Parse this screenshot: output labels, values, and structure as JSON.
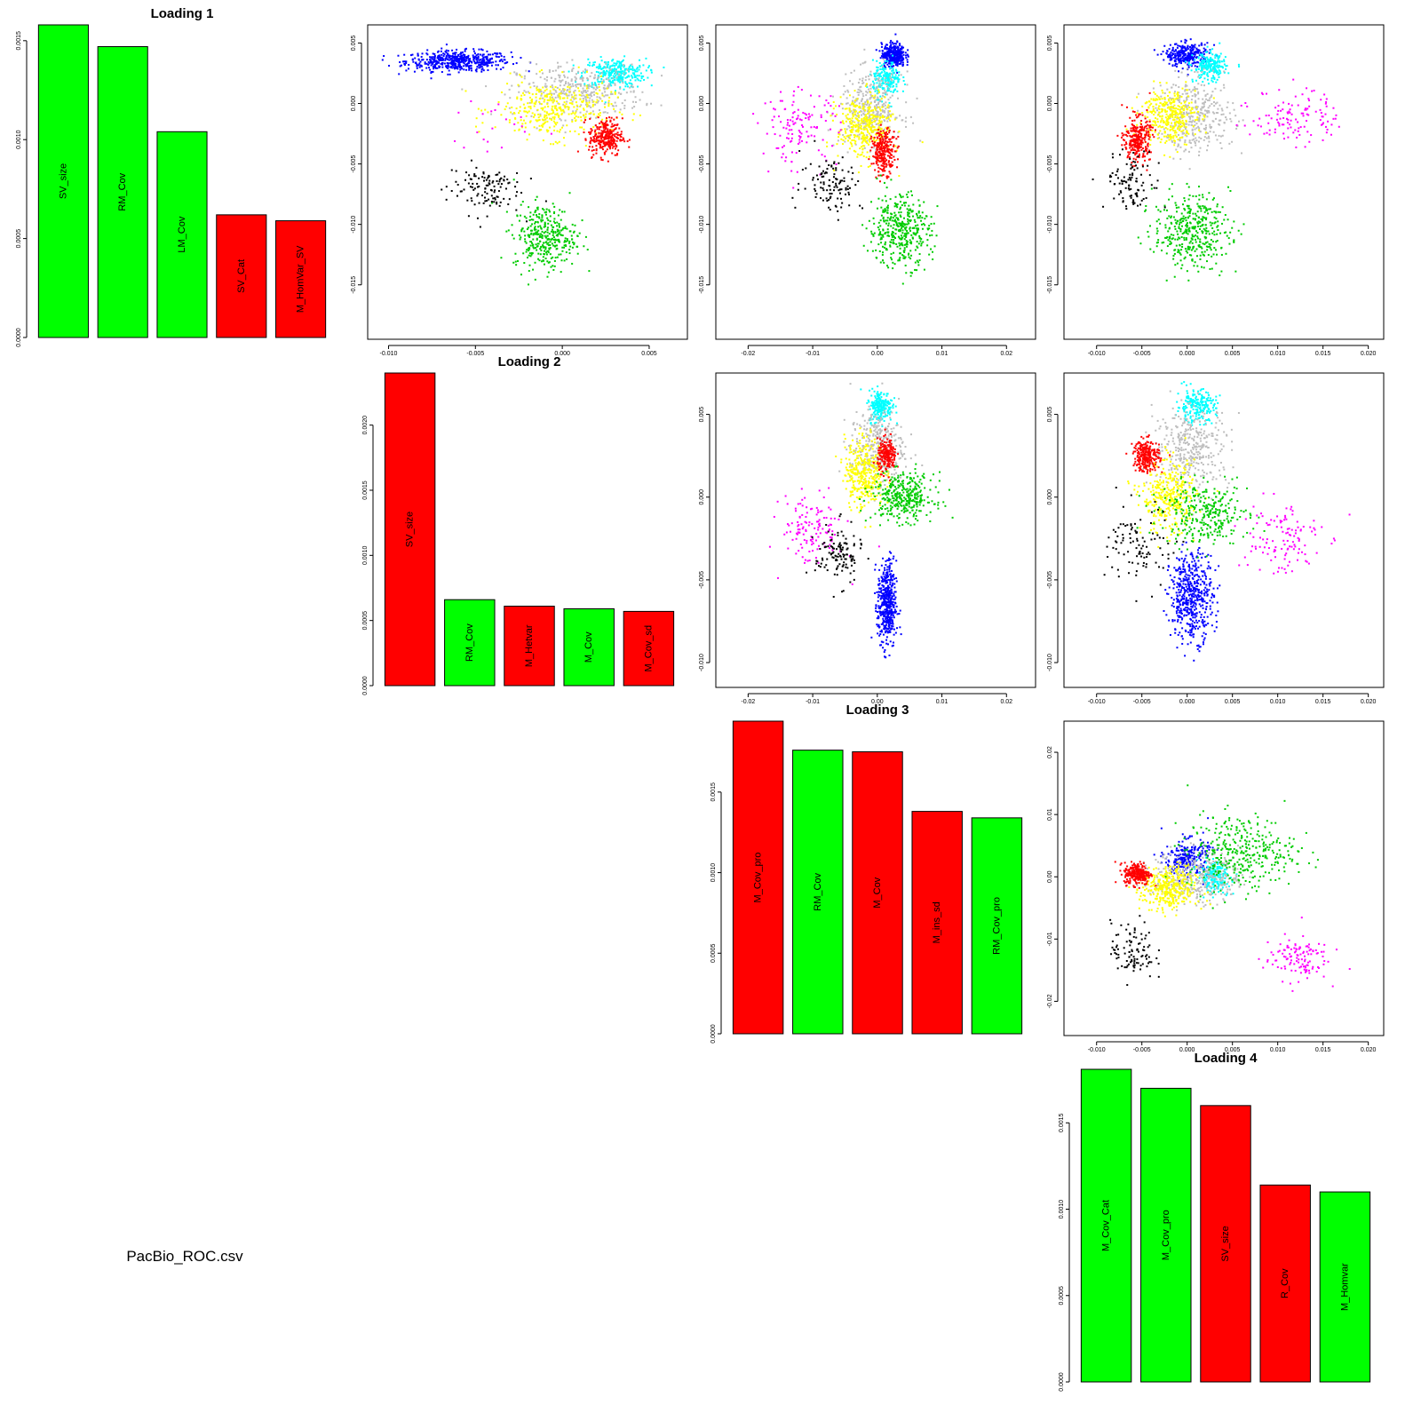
{
  "caption": "PacBio_ROC.csv",
  "colors": {
    "green": "#00ff00",
    "red": "#ff0000",
    "scatter_groups": [
      "#0000ff",
      "#00ffff",
      "#bebebe",
      "#ffff00",
      "#ff0000",
      "#00cc00",
      "#ff00ff",
      "#000000"
    ]
  },
  "chart_data": [
    {
      "id": "loading1",
      "type": "bar",
      "title": "Loading 1",
      "categories": [
        "SV_size",
        "RM_Cov",
        "LM_Cov",
        "SV_Cat",
        "M_HomVar_SV"
      ],
      "values": [
        0.00158,
        0.00147,
        0.00104,
        0.00062,
        0.00059
      ],
      "bar_colors": [
        "green",
        "green",
        "green",
        "red",
        "red"
      ],
      "ylim": [
        0,
        0.00158
      ],
      "yticks": [
        "0.0000",
        "0.0005",
        "0.0010",
        "0.0015"
      ],
      "ytick_values": [
        0,
        0.0005,
        0.001,
        0.0015
      ]
    },
    {
      "id": "loading2",
      "type": "bar",
      "title": "Loading 2",
      "categories": [
        "SV_size",
        "RM_Cov",
        "M_Hetvar",
        "M_Cov",
        "M_Cov_sd"
      ],
      "values": [
        0.0024,
        0.00066,
        0.00061,
        0.00059,
        0.00057
      ],
      "bar_colors": [
        "red",
        "green",
        "red",
        "green",
        "red"
      ],
      "ylim": [
        0,
        0.0024
      ],
      "yticks": [
        "0.0000",
        "0.0005",
        "0.0010",
        "0.0015",
        "0.0020"
      ],
      "ytick_values": [
        0,
        0.0005,
        0.001,
        0.0015,
        0.002
      ]
    },
    {
      "id": "loading3",
      "type": "bar",
      "title": "Loading 3",
      "categories": [
        "M_Cov_pro",
        "RM_Cov",
        "M_Cov",
        "M_ins_sd",
        "RM_Cov_pro"
      ],
      "values": [
        0.00194,
        0.00176,
        0.00175,
        0.00138,
        0.00134
      ],
      "bar_colors": [
        "red",
        "green",
        "red",
        "red",
        "green"
      ],
      "ylim": [
        0,
        0.00194
      ],
      "yticks": [
        "0.0000",
        "0.0005",
        "0.0010",
        "0.0015"
      ],
      "ytick_values": [
        0,
        0.0005,
        0.001,
        0.0015
      ]
    },
    {
      "id": "loading4",
      "type": "bar",
      "title": "Loading 4",
      "categories": [
        "M_Cov_Cat",
        "M_Cov_pro",
        "SV_size",
        "R_Cov",
        "M_Homvar"
      ],
      "values": [
        0.00181,
        0.0017,
        0.0016,
        0.00114,
        0.0011
      ],
      "bar_colors": [
        "green",
        "green",
        "red",
        "red",
        "green"
      ],
      "ylim": [
        0,
        0.00181
      ],
      "yticks": [
        "0.0000",
        "0.0005",
        "0.0010",
        "0.0015"
      ],
      "ytick_values": [
        0,
        0.0005,
        0.001,
        0.0015
      ]
    },
    {
      "id": "pc1_vs_pc2",
      "type": "scatter",
      "xlim": [
        -0.0112,
        0.0072
      ],
      "ylim": [
        -0.0195,
        0.0065
      ],
      "xticks": [
        "-0.010",
        "-0.005",
        "0.000",
        "0.005"
      ],
      "xtick_values": [
        -0.01,
        -0.005,
        0,
        0.005
      ],
      "yticks": [
        "-0.015",
        "-0.010",
        "-0.005",
        "0.000",
        "0.005"
      ],
      "ytick_values": [
        -0.015,
        -0.01,
        -0.005,
        0,
        0.005
      ],
      "groups": [
        {
          "color": "#0000ff",
          "center": [
            -0.006,
            0.0035
          ],
          "spread": [
            0.0025,
            0.0007
          ],
          "n": 500
        },
        {
          "color": "#00ffff",
          "center": [
            0.003,
            0.0025
          ],
          "spread": [
            0.0015,
            0.001
          ],
          "n": 300
        },
        {
          "color": "#bebebe",
          "center": [
            0.001,
            0.001
          ],
          "spread": [
            0.003,
            0.0018
          ],
          "n": 350
        },
        {
          "color": "#ffff00",
          "center": [
            -0.0005,
            -0.0005
          ],
          "spread": [
            0.0028,
            0.002
          ],
          "n": 350
        },
        {
          "color": "#ff0000",
          "center": [
            0.0025,
            -0.0028
          ],
          "spread": [
            0.0008,
            0.0013
          ],
          "n": 280
        },
        {
          "color": "#00cc00",
          "center": [
            -0.001,
            -0.011
          ],
          "spread": [
            0.0015,
            0.0022
          ],
          "n": 350
        },
        {
          "color": "#ff00ff",
          "center": [
            -0.004,
            -0.002
          ],
          "spread": [
            0.002,
            0.002
          ],
          "n": 20
        },
        {
          "color": "#000000",
          "center": [
            -0.0045,
            -0.007
          ],
          "spread": [
            0.0018,
            0.0018
          ],
          "n": 120
        }
      ]
    },
    {
      "id": "pc1_vs_pc3",
      "type": "scatter",
      "xlim": [
        -0.025,
        0.0245
      ],
      "ylim": [
        -0.0195,
        0.0065
      ],
      "xticks": [
        "-0.02",
        "-0.01",
        "0.00",
        "0.01",
        "0.02"
      ],
      "xtick_values": [
        -0.02,
        -0.01,
        0,
        0.01,
        0.02
      ],
      "yticks": [
        "-0.015",
        "-0.010",
        "-0.005",
        "0.000",
        "0.005"
      ],
      "ytick_values": [
        -0.015,
        -0.01,
        -0.005,
        0,
        0.005
      ],
      "groups": [
        {
          "color": "#0000ff",
          "center": [
            0.0025,
            0.004
          ],
          "spread": [
            0.0015,
            0.0008
          ],
          "n": 350
        },
        {
          "color": "#00ffff",
          "center": [
            0.0015,
            0.002
          ],
          "spread": [
            0.0018,
            0.0012
          ],
          "n": 200
        },
        {
          "color": "#bebebe",
          "center": [
            -0.001,
            -0.0005
          ],
          "spread": [
            0.004,
            0.0025
          ],
          "n": 350
        },
        {
          "color": "#ffff00",
          "center": [
            -0.002,
            -0.002
          ],
          "spread": [
            0.0035,
            0.0022
          ],
          "n": 350
        },
        {
          "color": "#ff0000",
          "center": [
            0.001,
            -0.004
          ],
          "spread": [
            0.0015,
            0.0015
          ],
          "n": 250
        },
        {
          "color": "#00cc00",
          "center": [
            0.0035,
            -0.0105
          ],
          "spread": [
            0.004,
            0.0025
          ],
          "n": 400
        },
        {
          "color": "#ff00ff",
          "center": [
            -0.012,
            -0.002
          ],
          "spread": [
            0.005,
            0.0025
          ],
          "n": 130
        },
        {
          "color": "#000000",
          "center": [
            -0.007,
            -0.0065
          ],
          "spread": [
            0.004,
            0.002
          ],
          "n": 110
        }
      ]
    },
    {
      "id": "pc1_vs_pc4",
      "type": "scatter",
      "xlim": [
        -0.0136,
        0.0217
      ],
      "ylim": [
        -0.0195,
        0.0065
      ],
      "xticks": [
        "-0.010",
        "-0.005",
        "0.000",
        "0.005",
        "0.010",
        "0.015",
        "0.020"
      ],
      "xtick_values": [
        -0.01,
        -0.005,
        0,
        0.005,
        0.01,
        0.015,
        0.02
      ],
      "yticks": [
        "-0.015",
        "-0.010",
        "-0.005",
        "0.000",
        "0.005"
      ],
      "ytick_values": [
        -0.015,
        -0.01,
        -0.005,
        0,
        0.005
      ],
      "groups": [
        {
          "color": "#0000ff",
          "center": [
            0.0,
            0.004
          ],
          "spread": [
            0.002,
            0.0008
          ],
          "n": 300
        },
        {
          "color": "#00ffff",
          "center": [
            0.0025,
            0.003
          ],
          "spread": [
            0.0015,
            0.001
          ],
          "n": 220
        },
        {
          "color": "#bebebe",
          "center": [
            0.001,
            -0.001
          ],
          "spread": [
            0.0035,
            0.0025
          ],
          "n": 350
        },
        {
          "color": "#ffff00",
          "center": [
            -0.002,
            -0.001
          ],
          "spread": [
            0.0025,
            0.002
          ],
          "n": 350
        },
        {
          "color": "#ff0000",
          "center": [
            -0.0055,
            -0.003
          ],
          "spread": [
            0.0012,
            0.0015
          ],
          "n": 280
        },
        {
          "color": "#00cc00",
          "center": [
            0.0005,
            -0.0105
          ],
          "spread": [
            0.0035,
            0.0025
          ],
          "n": 400
        },
        {
          "color": "#ff00ff",
          "center": [
            0.012,
            -0.001
          ],
          "spread": [
            0.004,
            0.002
          ],
          "n": 120
        },
        {
          "color": "#000000",
          "center": [
            -0.006,
            -0.0065
          ],
          "spread": [
            0.0025,
            0.002
          ],
          "n": 100
        }
      ]
    },
    {
      "id": "pc2_vs_pc3",
      "type": "scatter",
      "xlim": [
        -0.025,
        0.0245
      ],
      "ylim": [
        -0.0115,
        0.0075
      ],
      "xticks": [
        "-0.02",
        "-0.01",
        "0.00",
        "0.01",
        "0.02"
      ],
      "xtick_values": [
        -0.02,
        -0.01,
        0,
        0.01,
        0.02
      ],
      "yticks": [
        "-0.010",
        "-0.005",
        "0.000",
        "0.005"
      ],
      "ytick_values": [
        -0.01,
        -0.005,
        0,
        0.005
      ],
      "groups": [
        {
          "color": "#0000ff",
          "center": [
            0.0015,
            -0.0065
          ],
          "spread": [
            0.0012,
            0.0022
          ],
          "n": 450
        },
        {
          "color": "#00ffff",
          "center": [
            0.0005,
            0.0055
          ],
          "spread": [
            0.0015,
            0.0008
          ],
          "n": 220
        },
        {
          "color": "#bebebe",
          "center": [
            0.0,
            0.003
          ],
          "spread": [
            0.0035,
            0.0018
          ],
          "n": 350
        },
        {
          "color": "#ffff00",
          "center": [
            -0.002,
            0.0015
          ],
          "spread": [
            0.0025,
            0.0018
          ],
          "n": 350
        },
        {
          "color": "#ff0000",
          "center": [
            0.0015,
            0.0025
          ],
          "spread": [
            0.0012,
            0.0008
          ],
          "n": 200
        },
        {
          "color": "#00cc00",
          "center": [
            0.004,
            0.0
          ],
          "spread": [
            0.004,
            0.0012
          ],
          "n": 350
        },
        {
          "color": "#ff00ff",
          "center": [
            -0.01,
            -0.002
          ],
          "spread": [
            0.004,
            0.0018
          ],
          "n": 130
        },
        {
          "color": "#000000",
          "center": [
            -0.006,
            -0.0035
          ],
          "spread": [
            0.003,
            0.0015
          ],
          "n": 120
        }
      ]
    },
    {
      "id": "pc2_vs_pc4",
      "type": "scatter",
      "xlim": [
        -0.0136,
        0.0217
      ],
      "ylim": [
        -0.0115,
        0.0075
      ],
      "xticks": [
        "-0.010",
        "-0.005",
        "0.000",
        "0.005",
        "0.010",
        "0.015",
        "0.020"
      ],
      "xtick_values": [
        -0.01,
        -0.005,
        0,
        0.005,
        0.01,
        0.015,
        0.02
      ],
      "yticks": [
        "-0.010",
        "-0.005",
        "0.000",
        "0.005"
      ],
      "ytick_values": [
        -0.01,
        -0.005,
        0,
        0.005
      ],
      "groups": [
        {
          "color": "#0000ff",
          "center": [
            0.0005,
            -0.006
          ],
          "spread": [
            0.002,
            0.0022
          ],
          "n": 500
        },
        {
          "color": "#00ffff",
          "center": [
            0.001,
            0.0055
          ],
          "spread": [
            0.0018,
            0.0008
          ],
          "n": 220
        },
        {
          "color": "#bebebe",
          "center": [
            0.0005,
            0.003
          ],
          "spread": [
            0.0035,
            0.002
          ],
          "n": 350
        },
        {
          "color": "#ffff00",
          "center": [
            -0.002,
            0.0
          ],
          "spread": [
            0.0025,
            0.0018
          ],
          "n": 350
        },
        {
          "color": "#ff0000",
          "center": [
            -0.0045,
            0.0025
          ],
          "spread": [
            0.0012,
            0.0008
          ],
          "n": 250
        },
        {
          "color": "#00cc00",
          "center": [
            0.002,
            -0.001
          ],
          "spread": [
            0.004,
            0.0015
          ],
          "n": 300
        },
        {
          "color": "#ff00ff",
          "center": [
            0.01,
            -0.0025
          ],
          "spread": [
            0.004,
            0.002
          ],
          "n": 120
        },
        {
          "color": "#000000",
          "center": [
            -0.005,
            -0.003
          ],
          "spread": [
            0.003,
            0.002
          ],
          "n": 100
        }
      ]
    },
    {
      "id": "pc3_vs_pc4",
      "type": "scatter",
      "xlim": [
        -0.0136,
        0.0217
      ],
      "ylim": [
        -0.0255,
        0.025
      ],
      "xticks": [
        "-0.010",
        "-0.005",
        "0.000",
        "0.005",
        "0.010",
        "0.015",
        "0.020"
      ],
      "xtick_values": [
        -0.01,
        -0.005,
        0,
        0.005,
        0.01,
        0.015,
        0.02
      ],
      "yticks": [
        "-0.02",
        "-0.01",
        "0.00",
        "0.01",
        "0.02"
      ],
      "ytick_values": [
        -0.02,
        -0.01,
        0,
        0.01,
        0.02
      ],
      "groups": [
        {
          "color": "#0000ff",
          "center": [
            0.0,
            0.003
          ],
          "spread": [
            0.002,
            0.0025
          ],
          "n": 250
        },
        {
          "color": "#00ffff",
          "center": [
            0.003,
            0.0
          ],
          "spread": [
            0.0015,
            0.002
          ],
          "n": 200
        },
        {
          "color": "#bebebe",
          "center": [
            0.001,
            0.0
          ],
          "spread": [
            0.004,
            0.0035
          ],
          "n": 350
        },
        {
          "color": "#ffff00",
          "center": [
            -0.002,
            -0.002
          ],
          "spread": [
            0.0025,
            0.003
          ],
          "n": 350
        },
        {
          "color": "#ff0000",
          "center": [
            -0.0055,
            0.0005
          ],
          "spread": [
            0.0012,
            0.0015
          ],
          "n": 250
        },
        {
          "color": "#00cc00",
          "center": [
            0.006,
            0.004
          ],
          "spread": [
            0.005,
            0.005
          ],
          "n": 350
        },
        {
          "color": "#ff00ff",
          "center": [
            0.012,
            -0.013
          ],
          "spread": [
            0.003,
            0.003
          ],
          "n": 120
        },
        {
          "color": "#000000",
          "center": [
            -0.006,
            -0.012
          ],
          "spread": [
            0.002,
            0.004
          ],
          "n": 100
        }
      ]
    }
  ]
}
